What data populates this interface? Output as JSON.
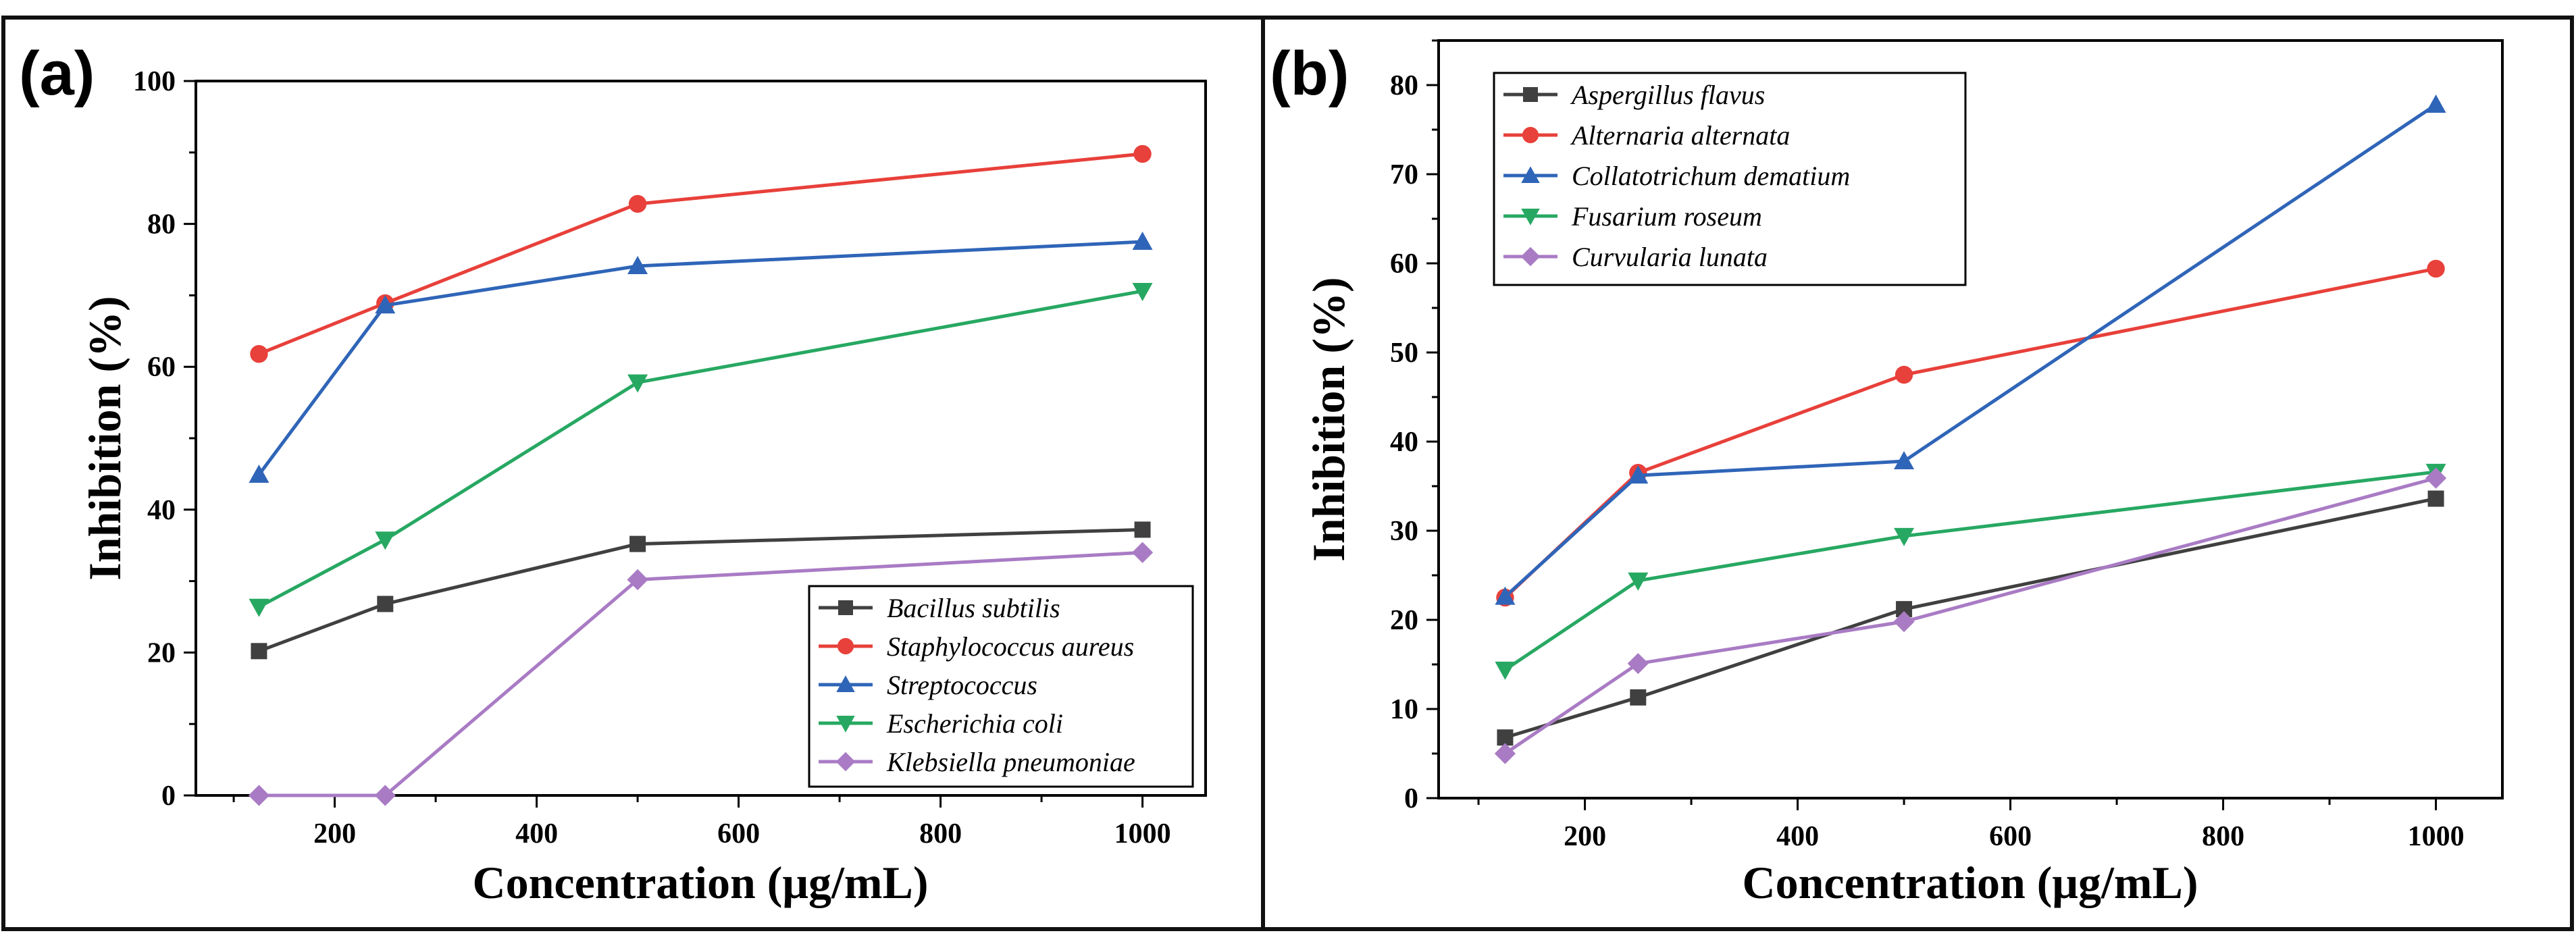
{
  "chart_data": [
    {
      "type": "line",
      "panel_label": "(a)",
      "xlabel": "Concentration (μg/mL)",
      "ylabel": "Inhibition (%)",
      "xlim": [
        62.5,
        1062.5
      ],
      "ylim": [
        0,
        100
      ],
      "xticks": [
        200,
        400,
        600,
        800,
        1000
      ],
      "yticks": [
        0,
        20,
        40,
        60,
        80,
        100
      ],
      "grid": false,
      "legend_position": "bottom-right",
      "x": [
        125,
        250,
        500,
        1000
      ],
      "series": [
        {
          "name": "Bacillus subtilis",
          "color": "#404040",
          "marker": "square",
          "values": [
            20.2,
            26.8,
            35.2,
            37.2
          ]
        },
        {
          "name": "Staphylococcus aureus",
          "color": "#e8403a",
          "marker": "circle",
          "values": [
            61.8,
            68.9,
            82.8,
            89.8
          ]
        },
        {
          "name": "Streptococcus",
          "color": "#2f65b8",
          "marker": "triangle-up",
          "values": [
            44.9,
            68.6,
            74.1,
            77.5
          ]
        },
        {
          "name": "Escherichia coli",
          "color": "#27a862",
          "marker": "triangle-down",
          "values": [
            26.4,
            35.8,
            57.8,
            70.6
          ]
        },
        {
          "name": "Klebsiella pneumoniae",
          "color": "#a97bc4",
          "marker": "diamond",
          "values": [
            0,
            0,
            30.2,
            34.0
          ]
        }
      ]
    },
    {
      "type": "line",
      "panel_label": "(b)",
      "xlabel": "Concentration (μg/mL)",
      "ylabel": "Inhibition (%)",
      "xlim": [
        62.5,
        1062.5
      ],
      "ylim": [
        0,
        85
      ],
      "xticks": [
        200,
        400,
        600,
        800,
        1000
      ],
      "yticks": [
        0,
        10,
        20,
        30,
        40,
        50,
        60,
        70,
        80
      ],
      "grid": false,
      "legend_position": "top-left",
      "x": [
        125,
        250,
        500,
        1000
      ],
      "series": [
        {
          "name": "Aspergillus flavus",
          "color": "#404040",
          "marker": "square",
          "values": [
            6.8,
            11.3,
            21.2,
            33.6
          ]
        },
        {
          "name": "Alternaria alternata",
          "color": "#e8403a",
          "marker": "circle",
          "values": [
            22.5,
            36.5,
            47.5,
            59.4
          ]
        },
        {
          "name": "Collatotrichum dematium",
          "color": "#2f65b8",
          "marker": "triangle-up",
          "values": [
            22.6,
            36.2,
            37.8,
            77.8
          ]
        },
        {
          "name": "Fusarium roseum",
          "color": "#27a862",
          "marker": "triangle-down",
          "values": [
            14.4,
            24.4,
            29.4,
            36.6
          ]
        },
        {
          "name": "Curvularia lunata",
          "color": "#a97bc4",
          "marker": "diamond",
          "values": [
            5.0,
            15.1,
            19.8,
            35.9
          ]
        }
      ]
    }
  ]
}
